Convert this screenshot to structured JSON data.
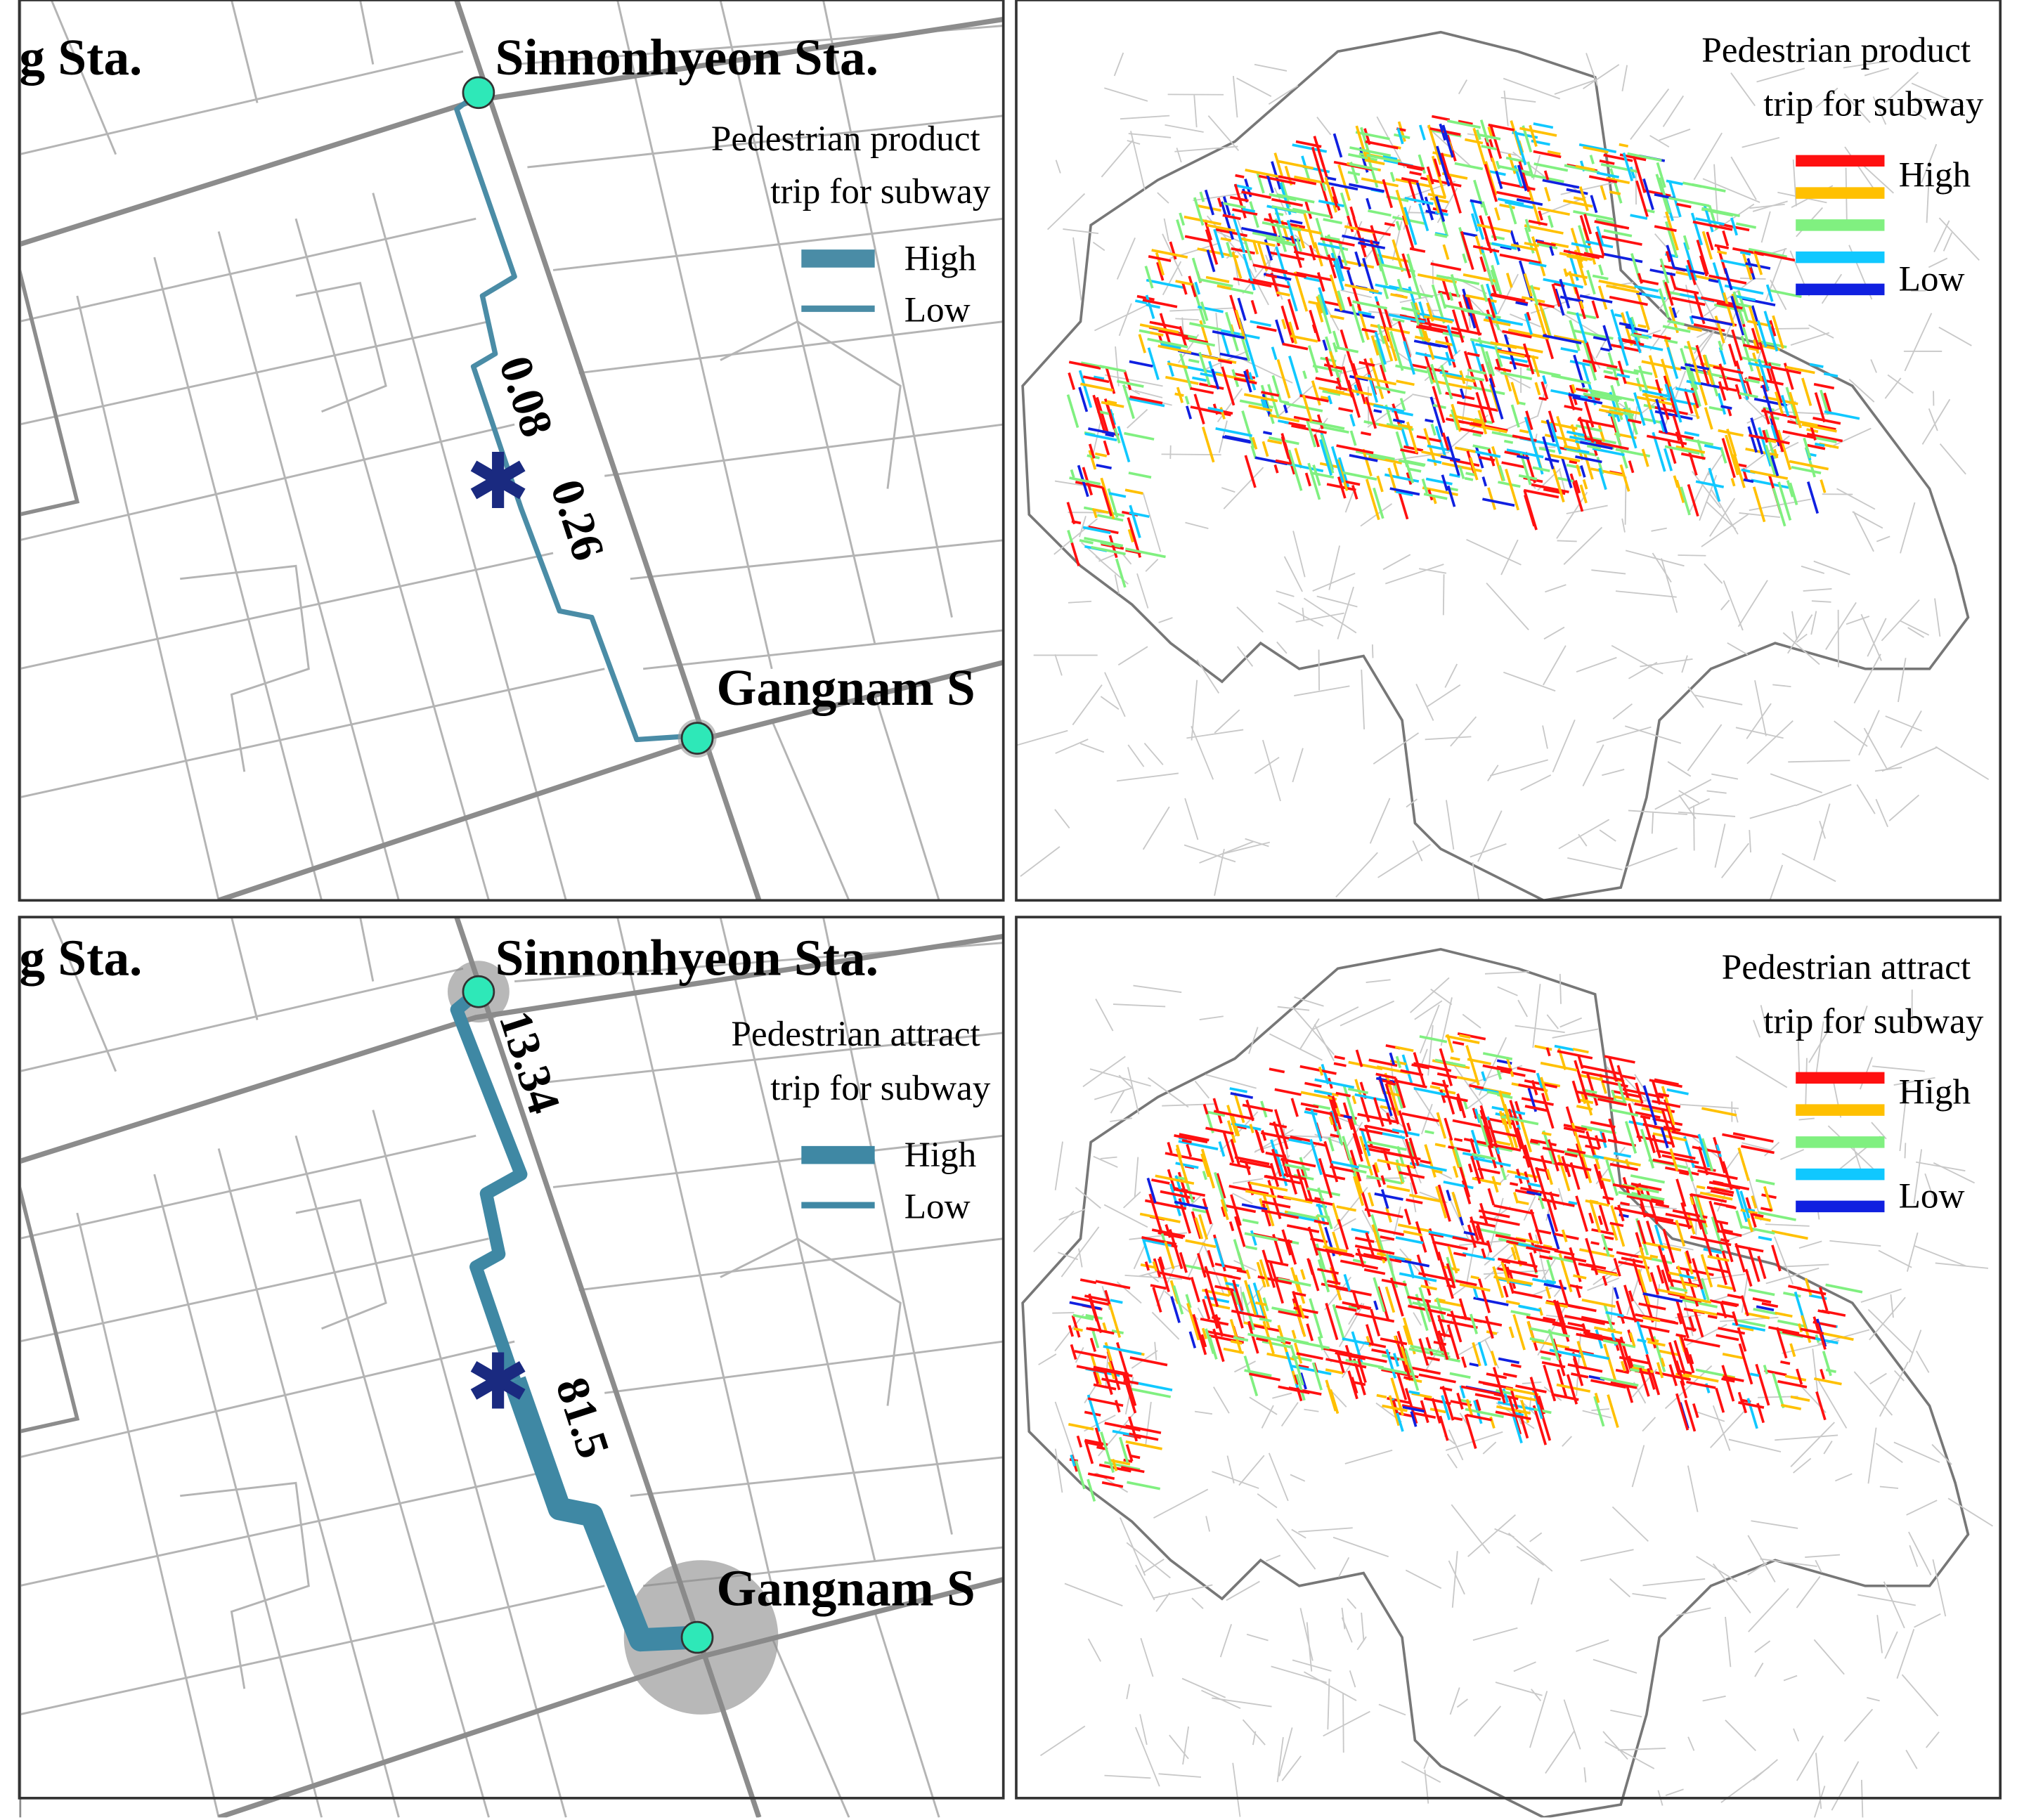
{
  "panels": [
    {
      "stations": [
        "g Sta.",
        "Sinnonhyeon Sta.",
        "Gangnam S"
      ],
      "legend": {
        "title": [
          "Pedestrian product",
          "trip for subway"
        ],
        "items": [
          "High",
          "Low"
        ],
        "color": "#4a8ca6"
      },
      "route_labels": [
        "0.08",
        "0.26"
      ]
    },
    {
      "legend": {
        "title": [
          "Pedestrian product",
          "trip for subway"
        ],
        "labels": [
          "High",
          "Low"
        ],
        "colors": [
          "#ff1010",
          "#ffc000",
          "#80f080",
          "#10c8ff",
          "#1020e0"
        ]
      }
    },
    {
      "stations": [
        "g Sta.",
        "Sinnonhyeon Sta.",
        "Gangnam S"
      ],
      "legend": {
        "title": [
          "Pedestrian attract",
          "trip for subway"
        ],
        "items": [
          "High",
          "Low"
        ],
        "color": "#3f88a4"
      },
      "route_labels": [
        "13.34",
        "81.5"
      ]
    },
    {
      "legend": {
        "title": [
          "Pedestrian attract",
          "trip for subway"
        ],
        "labels": [
          "High",
          "Low"
        ],
        "colors": [
          "#ff1010",
          "#ffc000",
          "#80f080",
          "#10c8ff",
          "#1020e0"
        ]
      }
    }
  ]
}
